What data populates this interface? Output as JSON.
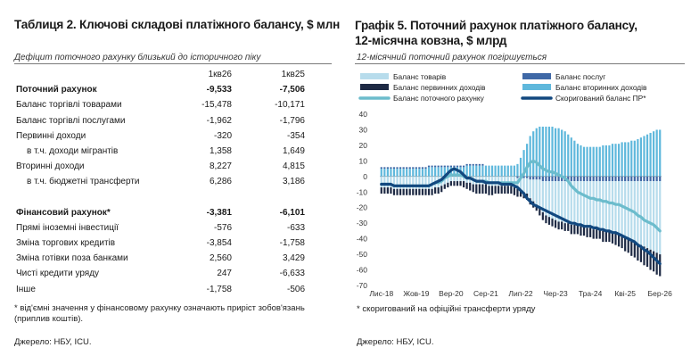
{
  "table": {
    "title": "Таблиця 2. Ключові складові платіжного балансу, $ млн",
    "subtitle": "Дефіцит поточного рахунку близький до історичного піку",
    "headers": [
      "1кв26",
      "1кв25"
    ],
    "rows": [
      {
        "label": "Поточний рахунок",
        "v1": "-9,533",
        "v2": "-7,506",
        "bold": true,
        "indent": false
      },
      {
        "label": "Баланс торгівлі товарами",
        "v1": "-15,478",
        "v2": "-10,171",
        "bold": false,
        "indent": false
      },
      {
        "label": "Баланс торгівлі послугами",
        "v1": "-1,962",
        "v2": "-1,796",
        "bold": false,
        "indent": false
      },
      {
        "label": "Первинні доходи",
        "v1": "-320",
        "v2": "-354",
        "bold": false,
        "indent": false
      },
      {
        "label": "в т.ч. доходи мігрантів",
        "v1": "1,358",
        "v2": "1,649",
        "bold": false,
        "indent": true
      },
      {
        "label": "Вторинні доходи",
        "v1": "8,227",
        "v2": "4,815",
        "bold": false,
        "indent": false
      },
      {
        "label": "в т.ч. бюджетні трансферти",
        "v1": "6,286",
        "v2": "3,186",
        "bold": false,
        "indent": true
      },
      {
        "label": "",
        "v1": "",
        "v2": "",
        "bold": false,
        "indent": false
      },
      {
        "label": "Фінансовий рахунок*",
        "v1": "-3,381",
        "v2": "-6,101",
        "bold": true,
        "indent": false
      },
      {
        "label": "Прямі іноземні інвестиції",
        "v1": "-576",
        "v2": "-633",
        "bold": false,
        "indent": false
      },
      {
        "label": "Зміна торгових кредитів",
        "v1": "-3,854",
        "v2": "-1,758",
        "bold": false,
        "indent": false
      },
      {
        "label": "Зміна готівки поза банками",
        "v1": "2,560",
        "v2": "3,429",
        "bold": false,
        "indent": false
      },
      {
        "label": "Чисті кредити уряду",
        "v1": "247",
        "v2": "-6,633",
        "bold": false,
        "indent": false
      },
      {
        "label": "Інше",
        "v1": "-1,758",
        "v2": "-506",
        "bold": false,
        "indent": false
      }
    ],
    "note": "* від'ємні значення у фінансовому рахунку означають приріст зобов'язань (приплив коштів).",
    "source": "Джерело: НБУ, ICU."
  },
  "chart": {
    "title": "Графік 5. Поточний рахунок платіжного балансу, 12-місячна ковзна, $ млрд",
    "subtitle": "12-місячний поточний рахунок погіршується",
    "note": "* скоригований на офіційні трансферти уряду",
    "source": "Джерело: НБУ, ICU.",
    "colors": {
      "goods": "#b7dcec",
      "services": "#3f68a6",
      "primary": "#1e2a44",
      "secondary": "#5fb8dc",
      "current": "#6cbccc",
      "adjusted": "#12487f"
    }
  },
  "chart_data": {
    "type": "bar",
    "title": "",
    "xlabel": "",
    "ylabel": "",
    "ylim": [
      -70,
      40
    ],
    "yticks": [
      40,
      30,
      20,
      10,
      0,
      -10,
      -20,
      -30,
      -40,
      -50,
      -60,
      -70
    ],
    "x_tick_labels": [
      "Лис-18",
      "Жов-19",
      "Вер-20",
      "Сер-21",
      "Лип-22",
      "Чер-23",
      "Тра-24",
      "Кві-25",
      "Бер-26"
    ],
    "x_tick_index": [
      0,
      11,
      22,
      33,
      44,
      55,
      66,
      77,
      88
    ],
    "legend_position": "top",
    "series": [
      {
        "name": "Баланс товарів",
        "kind": "bar",
        "values": [
          -7,
          -7,
          -7,
          -7,
          -8,
          -8,
          -8,
          -8,
          -8,
          -8,
          -8,
          -8,
          -8,
          -8,
          -8,
          -8,
          -8,
          -7,
          -7,
          -6,
          -5,
          -4,
          -3,
          -3,
          -3,
          -3,
          -3,
          -4,
          -4,
          -5,
          -5,
          -5,
          -5,
          -5,
          -6,
          -6,
          -6,
          -6,
          -6,
          -6,
          -6,
          -6,
          -7,
          -7,
          -8,
          -9,
          -10,
          -12,
          -14,
          -16,
          -18,
          -20,
          -22,
          -23,
          -24,
          -25,
          -26,
          -26,
          -27,
          -27,
          -28,
          -28,
          -28,
          -29,
          -29,
          -30,
          -30,
          -31,
          -31,
          -31,
          -32,
          -32,
          -32,
          -33,
          -33,
          -34,
          -35,
          -36,
          -37,
          -38,
          -39,
          -40,
          -41,
          -42,
          -43,
          -44,
          -45,
          -46,
          -47
        ]
      },
      {
        "name": "Баланс послуг",
        "kind": "bar",
        "values": [
          1,
          1,
          1,
          1,
          1,
          1,
          1,
          1,
          1,
          1,
          1,
          1,
          1,
          1,
          1,
          1,
          1,
          1,
          1,
          1,
          1,
          1,
          1,
          1,
          1,
          1,
          1,
          1,
          1,
          1,
          1,
          1,
          1,
          0,
          0,
          0,
          0,
          0,
          0,
          0,
          0,
          0,
          0,
          -1,
          -1,
          -1,
          -1,
          -2,
          -2,
          -2,
          -2,
          -3,
          -3,
          -3,
          -3,
          -3,
          -3,
          -3,
          -3,
          -3,
          -3,
          -3,
          -3,
          -3,
          -3,
          -3,
          -3,
          -3,
          -3,
          -3,
          -3,
          -3,
          -3,
          -3,
          -3,
          -3,
          -3,
          -3,
          -3,
          -3,
          -3,
          -3,
          -3,
          -3,
          -3,
          -3,
          -3,
          -3,
          -3
        ]
      },
      {
        "name": "Баланс первинних доходів",
        "kind": "bar",
        "values": [
          -4,
          -4,
          -4,
          -4,
          -4,
          -4,
          -4,
          -4,
          -4,
          -4,
          -4,
          -4,
          -4,
          -4,
          -4,
          -4,
          -4,
          -4,
          -4,
          -4,
          -3,
          -3,
          -3,
          -3,
          -3,
          -3,
          -4,
          -4,
          -5,
          -5,
          -6,
          -6,
          -6,
          -6,
          -6,
          -6,
          -5,
          -5,
          -5,
          -5,
          -5,
          -5,
          -5,
          -5,
          -4,
          -4,
          -4,
          -4,
          -4,
          -4,
          -5,
          -5,
          -5,
          -5,
          -5,
          -5,
          -5,
          -5,
          -5,
          -5,
          -6,
          -6,
          -6,
          -6,
          -6,
          -6,
          -6,
          -6,
          -6,
          -6,
          -7,
          -7,
          -7,
          -7,
          -8,
          -8,
          -8,
          -9,
          -9,
          -10,
          -10,
          -11,
          -11,
          -12,
          -12,
          -13,
          -13,
          -14,
          -14
        ]
      },
      {
        "name": "Баланс вторинних доходів",
        "kind": "bar",
        "values": [
          5,
          5,
          5,
          5,
          5,
          5,
          5,
          5,
          5,
          5,
          5,
          5,
          5,
          5,
          5,
          6,
          6,
          6,
          6,
          6,
          6,
          6,
          6,
          6,
          6,
          6,
          6,
          7,
          7,
          7,
          7,
          7,
          7,
          7,
          7,
          7,
          7,
          7,
          7,
          7,
          7,
          7,
          7,
          8,
          12,
          17,
          21,
          26,
          29,
          31,
          32,
          32,
          32,
          32,
          32,
          31,
          31,
          30,
          29,
          27,
          25,
          23,
          21,
          20,
          19,
          19,
          19,
          19,
          19,
          19,
          20,
          20,
          20,
          21,
          21,
          21,
          22,
          22,
          22,
          23,
          23,
          24,
          25,
          26,
          27,
          28,
          29,
          30,
          30
        ]
      },
      {
        "name": "Баланс поточного рахунку",
        "kind": "line",
        "values": [
          -5,
          -5,
          -5,
          -5,
          -6,
          -6,
          -6,
          -6,
          -6,
          -6,
          -6,
          -6,
          -6,
          -6,
          -6,
          -6,
          -5,
          -4,
          -4,
          -3,
          -1,
          0,
          1,
          1,
          1,
          1,
          0,
          -1,
          -1,
          -2,
          -3,
          -3,
          -3,
          -3,
          -4,
          -4,
          -4,
          -4,
          -4,
          -4,
          -4,
          -4,
          -4,
          -4,
          -1,
          2,
          6,
          9,
          10,
          9,
          7,
          5,
          4,
          3,
          3,
          2,
          1,
          0,
          -1,
          -3,
          -6,
          -8,
          -10,
          -11,
          -12,
          -13,
          -14,
          -14,
          -15,
          -15,
          -16,
          -16,
          -17,
          -17,
          -18,
          -18,
          -19,
          -20,
          -21,
          -22,
          -23,
          -25,
          -26,
          -28,
          -29,
          -30,
          -31,
          -33,
          -35
        ]
      },
      {
        "name": "Скоригований баланс ПР*",
        "kind": "line",
        "values": [
          -5,
          -5,
          -5,
          -5,
          -6,
          -6,
          -6,
          -6,
          -6,
          -6,
          -6,
          -6,
          -6,
          -6,
          -6,
          -6,
          -5,
          -4,
          -3,
          -2,
          0,
          2,
          4,
          5,
          4,
          3,
          1,
          -1,
          -1,
          -2,
          -3,
          -3,
          -3,
          -4,
          -4,
          -4,
          -4,
          -4,
          -5,
          -5,
          -5,
          -5,
          -6,
          -7,
          -9,
          -11,
          -14,
          -16,
          -18,
          -19,
          -20,
          -21,
          -22,
          -23,
          -24,
          -25,
          -26,
          -27,
          -28,
          -29,
          -30,
          -30,
          -31,
          -31,
          -32,
          -32,
          -32,
          -33,
          -33,
          -34,
          -34,
          -35,
          -35,
          -36,
          -36,
          -37,
          -38,
          -39,
          -40,
          -41,
          -42,
          -44,
          -45,
          -47,
          -48,
          -50,
          -52,
          -54,
          -56
        ]
      }
    ]
  }
}
